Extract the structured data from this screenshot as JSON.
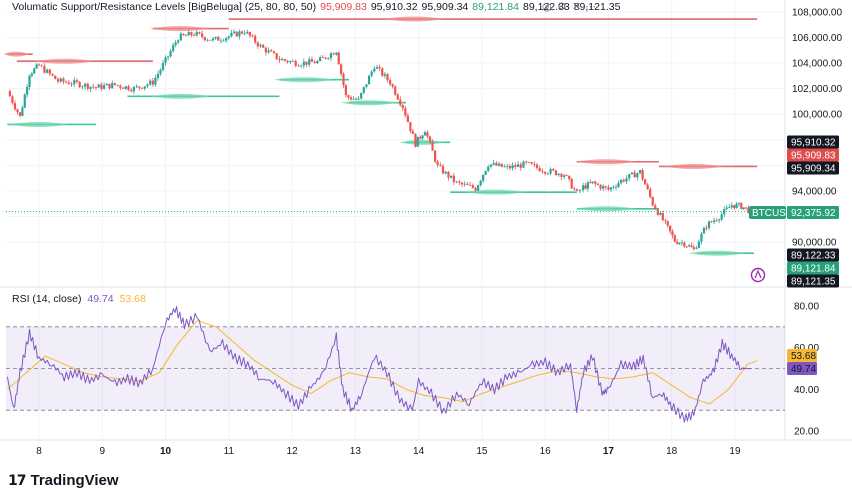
{
  "indicator": {
    "name": "Volumatic Support/Resistance Levels [BigBeluga] (25, 80, 80, 50)",
    "values": [
      "95,909.83",
      "95,910.32",
      "95,909.34",
      "89,121.84",
      "89,122.33",
      "89,121.35"
    ],
    "value_colors": [
      "#e04b4b",
      "#131722",
      "#131722",
      "#26a17a",
      "#131722",
      "#131722"
    ]
  },
  "controls": {
    "icons": [
      "eye-icon",
      "settings-icon",
      "close-icon",
      "more-icon"
    ],
    "glyphs": [
      "◎",
      "⚙",
      "✕",
      "⋯"
    ]
  },
  "rsi": {
    "label": "RSI (14, close)",
    "value": "49.74",
    "ma_value": "53.68",
    "color_rsi": "#7e57c2",
    "color_ma": "#f5b82e"
  },
  "price_axis": {
    "ticks": [
      "108,000.00",
      "106,000.00",
      "104,000.00",
      "102,000.00",
      "100,000.00",
      "94,000.00",
      "90,000.00"
    ]
  },
  "price_tags": [
    {
      "text": "95,910.32",
      "bg": "#131722"
    },
    {
      "text": "95,909.83",
      "bg": "#e04b4b"
    },
    {
      "text": "95,909.34",
      "bg": "#131722"
    },
    {
      "symbol": "BTCUSD",
      "text": "92,375.92",
      "bg": "#26a17a"
    },
    {
      "text": "89,122.33",
      "bg": "#131722"
    },
    {
      "text": "89,121.84",
      "bg": "#26a17a"
    },
    {
      "text": "89,121.35",
      "bg": "#131722"
    }
  ],
  "rsi_axis": {
    "ticks": [
      "80.00",
      "60.00",
      "40.00",
      "20.00"
    ],
    "tags": [
      {
        "text": "53.68",
        "bg": "#f5b82e",
        "fg": "#131722"
      },
      {
        "text": "49.74",
        "bg": "#7e57c2",
        "fg": "#ffffff"
      }
    ]
  },
  "time_axis": {
    "labels": [
      "8",
      "9",
      "10",
      "11",
      "12",
      "13",
      "14",
      "15",
      "16",
      "17",
      "18",
      "19"
    ],
    "bold": [
      "10",
      "17"
    ]
  },
  "branding": {
    "wordmark": "TradingView",
    "glyph": "17"
  },
  "alert_icon": "tradingview-alert-icon",
  "chart_data": {
    "type": "candlestick",
    "symbol": "BTCUSD",
    "last_price": 92375.92,
    "ylim": [
      88000,
      108800
    ],
    "x_days": [
      8,
      9,
      10,
      11,
      12,
      13,
      14,
      15,
      16,
      17,
      18,
      19
    ],
    "price_path": [
      [
        7.5,
        101800
      ],
      [
        7.7,
        99800
      ],
      [
        7.85,
        103200
      ],
      [
        8.0,
        103800
      ],
      [
        8.3,
        102600
      ],
      [
        8.6,
        102400
      ],
      [
        8.9,
        102100
      ],
      [
        9.2,
        102300
      ],
      [
        9.5,
        102000
      ],
      [
        9.8,
        102500
      ],
      [
        10.0,
        104200
      ],
      [
        10.2,
        106000
      ],
      [
        10.45,
        106300
      ],
      [
        10.75,
        105800
      ],
      [
        11.0,
        106100
      ],
      [
        11.25,
        106500
      ],
      [
        11.5,
        105300
      ],
      [
        11.8,
        104300
      ],
      [
        12.1,
        104000
      ],
      [
        12.4,
        104100
      ],
      [
        12.7,
        105000
      ],
      [
        12.85,
        101400
      ],
      [
        13.05,
        101100
      ],
      [
        13.3,
        103800
      ],
      [
        13.55,
        102500
      ],
      [
        13.75,
        100600
      ],
      [
        13.95,
        97700
      ],
      [
        14.1,
        98800
      ],
      [
        14.3,
        95900
      ],
      [
        14.6,
        94600
      ],
      [
        14.9,
        94200
      ],
      [
        15.1,
        96100
      ],
      [
        15.4,
        95800
      ],
      [
        15.7,
        96100
      ],
      [
        16.0,
        95600
      ],
      [
        16.3,
        95300
      ],
      [
        16.5,
        93800
      ],
      [
        16.6,
        94300
      ],
      [
        16.75,
        94600
      ],
      [
        17.0,
        94100
      ],
      [
        17.2,
        94800
      ],
      [
        17.5,
        95500
      ],
      [
        17.7,
        93000
      ],
      [
        17.9,
        91400
      ],
      [
        18.05,
        90100
      ],
      [
        18.2,
        89900
      ],
      [
        18.35,
        89400
      ],
      [
        18.55,
        91300
      ],
      [
        18.75,
        92000
      ],
      [
        18.95,
        92900
      ],
      [
        19.1,
        92800
      ],
      [
        19.25,
        92400
      ]
    ],
    "resistance_levels": [
      {
        "price": 104700,
        "from": 7.5,
        "to": 7.9
      },
      {
        "price": 104150,
        "from": 7.65,
        "to": 9.8
      },
      {
        "price": 106700,
        "from": 9.8,
        "to": 11.0
      },
      {
        "price": 107450,
        "from": 11.0,
        "to": 19.35
      },
      {
        "price": 96280,
        "from": 16.5,
        "to": 17.8
      },
      {
        "price": 95910,
        "from": 17.8,
        "to": 19.35
      }
    ],
    "support_levels": [
      {
        "price": 99200,
        "from": 7.5,
        "to": 8.9
      },
      {
        "price": 101400,
        "from": 9.4,
        "to": 11.8
      },
      {
        "price": 102700,
        "from": 11.8,
        "to": 12.9
      },
      {
        "price": 100900,
        "from": 12.9,
        "to": 13.8
      },
      {
        "price": 97800,
        "from": 13.8,
        "to": 14.5
      },
      {
        "price": 93900,
        "from": 14.5,
        "to": 16.5
      },
      {
        "price": 92600,
        "from": 16.5,
        "to": 17.8
      },
      {
        "price": 89122,
        "from": 18.4,
        "to": 19.3
      }
    ],
    "rsi_series": [
      [
        7.5,
        46
      ],
      [
        7.6,
        30
      ],
      [
        7.7,
        48
      ],
      [
        7.85,
        67
      ],
      [
        8.0,
        55
      ],
      [
        8.2,
        52
      ],
      [
        8.4,
        46
      ],
      [
        8.6,
        48
      ],
      [
        8.8,
        44
      ],
      [
        9.0,
        47
      ],
      [
        9.2,
        43
      ],
      [
        9.4,
        45
      ],
      [
        9.6,
        43
      ],
      [
        9.8,
        50
      ],
      [
        10.0,
        72
      ],
      [
        10.15,
        79
      ],
      [
        10.3,
        71
      ],
      [
        10.5,
        75
      ],
      [
        10.7,
        58
      ],
      [
        10.9,
        62
      ],
      [
        11.1,
        55
      ],
      [
        11.3,
        52
      ],
      [
        11.5,
        45
      ],
      [
        11.7,
        44
      ],
      [
        11.9,
        38
      ],
      [
        12.1,
        32
      ],
      [
        12.3,
        41
      ],
      [
        12.5,
        48
      ],
      [
        12.7,
        65
      ],
      [
        12.8,
        40
      ],
      [
        12.95,
        30
      ],
      [
        13.1,
        38
      ],
      [
        13.3,
        56
      ],
      [
        13.5,
        48
      ],
      [
        13.7,
        35
      ],
      [
        13.9,
        30
      ],
      [
        14.0,
        44
      ],
      [
        14.2,
        38
      ],
      [
        14.4,
        29
      ],
      [
        14.6,
        38
      ],
      [
        14.8,
        33
      ],
      [
        15.0,
        44
      ],
      [
        15.2,
        40
      ],
      [
        15.4,
        46
      ],
      [
        15.6,
        48
      ],
      [
        15.8,
        52
      ],
      [
        16.0,
        53
      ],
      [
        16.2,
        48
      ],
      [
        16.4,
        52
      ],
      [
        16.5,
        30
      ],
      [
        16.6,
        48
      ],
      [
        16.75,
        56
      ],
      [
        16.9,
        38
      ],
      [
        17.0,
        40
      ],
      [
        17.2,
        52
      ],
      [
        17.4,
        51
      ],
      [
        17.55,
        55
      ],
      [
        17.7,
        36
      ],
      [
        17.85,
        38
      ],
      [
        18.0,
        32
      ],
      [
        18.2,
        26
      ],
      [
        18.35,
        28
      ],
      [
        18.5,
        44
      ],
      [
        18.65,
        48
      ],
      [
        18.8,
        62
      ],
      [
        18.95,
        56
      ],
      [
        19.1,
        50
      ],
      [
        19.25,
        50
      ]
    ],
    "rsi_ma_series": [
      [
        7.5,
        40
      ],
      [
        7.8,
        48
      ],
      [
        8.1,
        56
      ],
      [
        8.4,
        52
      ],
      [
        8.7,
        48
      ],
      [
        9.0,
        46
      ],
      [
        9.3,
        45
      ],
      [
        9.6,
        44
      ],
      [
        9.9,
        48
      ],
      [
        10.2,
        62
      ],
      [
        10.5,
        73
      ],
      [
        10.8,
        70
      ],
      [
        11.1,
        62
      ],
      [
        11.4,
        54
      ],
      [
        11.7,
        48
      ],
      [
        12.0,
        42
      ],
      [
        12.3,
        38
      ],
      [
        12.6,
        44
      ],
      [
        12.9,
        48
      ],
      [
        13.2,
        46
      ],
      [
        13.5,
        45
      ],
      [
        13.8,
        40
      ],
      [
        14.1,
        37
      ],
      [
        14.4,
        36
      ],
      [
        14.7,
        34
      ],
      [
        15.0,
        38
      ],
      [
        15.3,
        41
      ],
      [
        15.6,
        44
      ],
      [
        15.9,
        47
      ],
      [
        16.2,
        49
      ],
      [
        16.5,
        48
      ],
      [
        16.8,
        46
      ],
      [
        17.1,
        45
      ],
      [
        17.4,
        46
      ],
      [
        17.7,
        48
      ],
      [
        18.0,
        42
      ],
      [
        18.3,
        36
      ],
      [
        18.6,
        33
      ],
      [
        18.9,
        40
      ],
      [
        19.2,
        52
      ],
      [
        19.35,
        53.7
      ]
    ],
    "rsi_bands": {
      "upper": 70,
      "middle": 50,
      "lower": 30
    },
    "rsi_ylim": [
      20,
      80
    ]
  }
}
